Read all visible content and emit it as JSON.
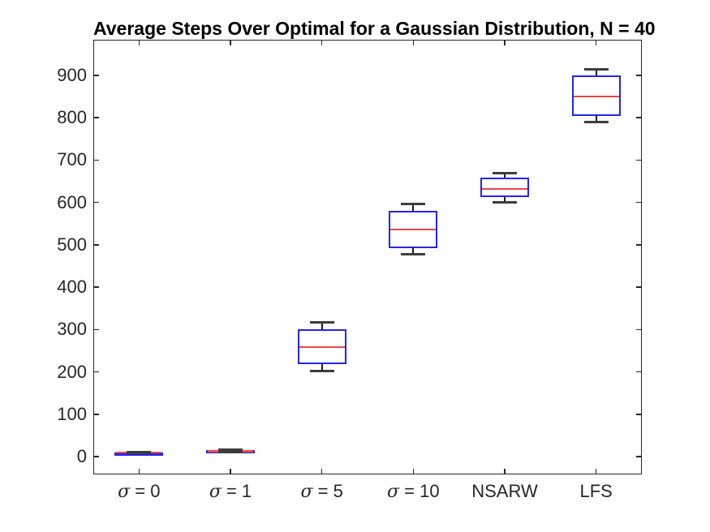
{
  "figure": {
    "background": "#ffffff"
  },
  "chart_data": {
    "type": "boxplot",
    "title": "Average Steps Over Optimal for a Gaussian Distribution, N = 40",
    "xlabel": "",
    "ylabel": "",
    "grid": false,
    "legend": null,
    "ylim": [
      -42,
      984
    ],
    "yticks": [
      0,
      100,
      200,
      300,
      400,
      500,
      600,
      700,
      800,
      900
    ],
    "categories": [
      {
        "sigma": "σ",
        "rest": " = 0"
      },
      {
        "sigma": "σ",
        "rest": " = 1"
      },
      {
        "sigma": "σ",
        "rest": " = 5"
      },
      {
        "sigma": "σ",
        "rest": " = 10"
      },
      {
        "sigma": "",
        "rest": "NSARW"
      },
      {
        "sigma": "",
        "rest": "LFS"
      }
    ],
    "boxes": [
      {
        "whisker_low": 8,
        "q1": 9,
        "median": 9.5,
        "q3": 10,
        "whisker_high": 11
      },
      {
        "whisker_low": 11,
        "q1": 12,
        "median": 13,
        "q3": 14.5,
        "whisker_high": 16
      },
      {
        "whisker_low": 203,
        "q1": 218,
        "median": 259,
        "q3": 301,
        "whisker_high": 316
      },
      {
        "whisker_low": 477,
        "q1": 492,
        "median": 536,
        "q3": 580,
        "whisker_high": 596
      },
      {
        "whisker_low": 601,
        "q1": 613,
        "median": 632,
        "q3": 659,
        "whisker_high": 670
      },
      {
        "whisker_low": 789,
        "q1": 804,
        "median": 850,
        "q3": 900,
        "whisker_high": 915
      }
    ],
    "colors": {
      "box_edge": "#2424f0",
      "median": "#ea4747",
      "whisker": "#1a1a1a",
      "cap": "#3d3d3d",
      "axis": "#262626",
      "title_text": "#000000"
    }
  }
}
